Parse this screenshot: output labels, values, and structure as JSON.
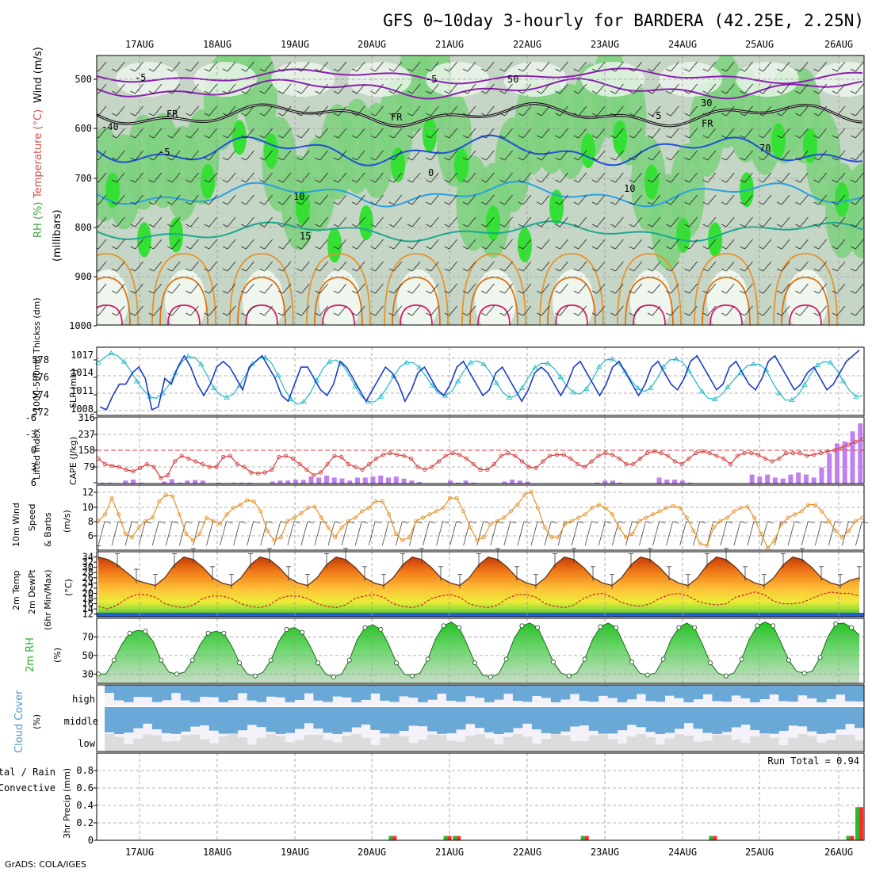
{
  "title": "GFS 0~10day 3-hourly for BARDERA (42.25E, 2.25N)",
  "credit": "GrADS: COLA/IGES",
  "days": [
    "17AUG",
    "18AUG",
    "19AUG",
    "20AUG",
    "21AUG",
    "22AUG",
    "23AUG",
    "24AUG",
    "25AUG",
    "26AUG"
  ],
  "colors": {
    "humid_light": "#eef6ee",
    "humid_mid": "#c6d6c6",
    "humid_green": "#7ed27e",
    "humid_bright": "#35e035",
    "thickness": "#22b8c8",
    "slp": "#1a3cc8",
    "lifted": "#d83a3a",
    "cape": "#c080f0",
    "wind10": "#e8922a",
    "temp_fill": "#f07a18",
    "dewpt": "#cc2222",
    "rh": "#2ab02a",
    "cloud": "#6aa8d8",
    "rain": "#ff2a2a",
    "precip_total": "#2ab82a"
  },
  "panels": {
    "upper": {
      "y_label_1": "RH (%)",
      "y_label_2": "Temperature (°C)",
      "y_label_3": "Wind (m/s)",
      "y_label_units": "(millibars)",
      "levels": [
        "500",
        "600",
        "700",
        "800",
        "900",
        "1000"
      ],
      "contour_labels": [
        "-5",
        "-5",
        "FR",
        "FR",
        "FR",
        "-5",
        "-5",
        "10",
        "10",
        "15",
        "-40",
        "50",
        "30",
        "70",
        "0"
      ]
    },
    "thickness_slp": {
      "left_label": "1000-500mb Thickss (dm)",
      "right_label": "SLP (mb)",
      "thickness_ticks": [
        "578",
        "576",
        "574",
        "572"
      ],
      "slp_ticks": [
        "1017",
        "1014",
        "1011",
        "1008"
      ]
    },
    "lifted_cape": {
      "left_label": "Lifted Index",
      "right_label": "CAPE (J/kg)",
      "li_ticks": [
        "-6",
        "-3",
        "0",
        "3",
        "6"
      ],
      "cape_ticks": [
        "316",
        "237",
        "158",
        "79"
      ]
    },
    "wind10m": {
      "label_1": "10m Wind",
      "label_2": "Speed",
      "label_3": "& Barbs",
      "unit": "(m/s)",
      "ticks": [
        "12",
        "10",
        "8",
        "6"
      ]
    },
    "temp2m": {
      "label_1": "2m Temp",
      "label_2": "2m DewPt",
      "label_3": "(6hr Min/Max)",
      "unit": "(°C)",
      "ticks": [
        "34",
        "32",
        "30",
        "28",
        "26",
        "24",
        "22",
        "20",
        "18",
        "16",
        "14",
        "12"
      ]
    },
    "rh2m": {
      "label": "2m RH",
      "unit": "(%)",
      "ticks": [
        "70",
        "50",
        "30"
      ]
    },
    "cloud": {
      "label": "Cloud Cover",
      "unit": "(%)",
      "layers": [
        "high",
        "middle",
        "low"
      ]
    },
    "precip": {
      "label_1": "Total / Rain",
      "label_2": "Convective",
      "axis": "3hr Precip (mm)",
      "ticks": [
        "0.8",
        "0.6",
        "0.4",
        "0.2",
        "0"
      ],
      "run_total": "Run Total = 0.94"
    }
  },
  "chart_data": [
    {
      "type": "line",
      "name": "1000-500mb Thickness",
      "ylim": [
        571,
        579
      ],
      "x": "3-hourly steps 16AUG 12Z to 26AUG 12Z",
      "values": [
        577.2,
        577.8,
        578.3,
        578.0,
        577.3,
        576.3,
        575.0,
        574.0,
        573.2,
        573.0,
        573.6,
        574.6,
        576.0,
        577.3,
        577.9,
        577.8,
        577.0,
        575.6,
        574.2,
        573.4,
        573.1,
        573.5,
        574.5,
        575.8,
        577.0,
        577.7,
        577.8,
        577.1,
        575.7,
        574.1,
        572.9,
        572.3,
        572.6,
        573.6,
        575.1,
        576.5,
        577.3,
        577.5,
        577.0,
        575.8,
        574.4,
        573.2,
        572.6,
        572.6,
        573.2,
        574.3,
        575.6,
        576.7,
        577.2,
        577.2,
        576.6,
        575.6,
        574.5,
        573.6,
        573.3,
        573.8,
        575.0,
        576.3,
        577.2,
        577.4,
        577.0,
        576.1,
        574.8,
        573.7,
        573.1,
        573.3,
        574.2,
        575.5,
        576.6,
        577.1,
        577.1,
        576.5,
        575.5,
        574.4,
        573.7,
        573.5,
        574.1,
        575.3,
        576.7,
        577.5,
        577.6,
        577.1,
        576.2,
        575.1,
        574.2,
        573.8,
        574.2,
        575.3,
        576.7,
        577.5,
        577.6,
        577.2,
        576.2,
        575.0,
        573.8,
        573.0,
        572.9,
        573.4,
        574.3,
        575.2,
        576.0,
        576.8,
        577.0,
        577.0,
        576.3,
        574.9,
        573.6,
        572.8,
        572.8,
        573.4,
        574.6,
        575.9,
        576.9,
        577.3,
        577.2,
        576.3,
        575.0,
        573.9,
        573.2,
        573.3
      ]
    },
    {
      "type": "line",
      "name": "SLP",
      "ylim": [
        1006.5,
        1018.5
      ],
      "values": [
        1008,
        1007.5,
        1010,
        1012,
        1012,
        1014,
        1015,
        1013,
        1007.5,
        1008,
        1013,
        1012,
        1015,
        1017,
        1015,
        1012,
        1010,
        1012,
        1015,
        1016,
        1015,
        1013,
        1011,
        1015,
        1016,
        1017,
        1015,
        1013,
        1010,
        1009,
        1012,
        1015,
        1015,
        1013,
        1011,
        1010,
        1012,
        1016,
        1015,
        1013,
        1011,
        1009,
        1011,
        1013,
        1015,
        1014,
        1012,
        1009,
        1011,
        1014,
        1015,
        1013,
        1011,
        1010,
        1012,
        1015,
        1016,
        1014,
        1012,
        1010,
        1011,
        1014,
        1015,
        1013,
        1011,
        1009,
        1011,
        1014,
        1015,
        1014,
        1012,
        1010,
        1012,
        1015,
        1016,
        1014,
        1012,
        1010,
        1012,
        1015,
        1016,
        1014,
        1012,
        1010,
        1012,
        1015,
        1016,
        1014,
        1012,
        1011,
        1013,
        1016,
        1017,
        1015,
        1013,
        1011,
        1012,
        1015,
        1016,
        1014,
        1012,
        1011,
        1013,
        1016,
        1017,
        1015,
        1013,
        1011,
        1012,
        1014,
        1015,
        1013,
        1011,
        1012,
        1014,
        1016,
        1017,
        1018
      ]
    },
    {
      "type": "line",
      "name": "Lifted Index",
      "ylim": [
        6,
        -6
      ],
      "values": [
        1.5,
        2.5,
        2.8,
        3.0,
        3.5,
        3.8,
        3.2,
        2.5,
        3.0,
        5.0,
        4.5,
        2.0,
        1.0,
        1.5,
        2.0,
        2.5,
        3.0,
        3.0,
        1.2,
        1.0,
        2.5,
        3.0,
        4.0,
        4.2,
        4.0,
        3.5,
        1.2,
        1.0,
        1.5,
        2.5,
        3.5,
        4.5,
        4.0,
        2.5,
        1.0,
        1.2,
        2.5,
        3.0,
        3.5,
        2.5,
        1.5,
        0.8,
        0.5,
        0.8,
        1.0,
        1.5,
        3.0,
        3.5,
        3.0,
        2.0,
        1.0,
        0.5,
        0.8,
        1.5,
        2.5,
        3.5,
        3.5,
        2.5,
        1.0,
        0.5,
        1.0,
        2.0,
        3.0,
        3.2,
        2.0,
        1.0,
        0.8,
        0.8,
        1.5,
        2.5,
        3.0,
        2.0,
        1.0,
        0.5,
        0.8,
        1.5,
        2.5,
        2.5,
        1.5,
        0.5,
        0.2,
        0.5,
        1.0,
        2.0,
        2.5,
        1.5,
        0.5,
        0.2,
        0.5,
        1.0,
        1.5,
        2.5,
        1.0,
        0.5,
        0.5,
        0.8,
        1.5,
        2.0,
        1.5,
        0.5,
        0.5,
        0.5,
        1.0,
        0.8,
        0.5,
        0.2,
        0.0,
        -0.5,
        -1.0,
        -1.5,
        -2.0
      ]
    },
    {
      "type": "bar",
      "name": "CAPE",
      "ylim": [
        0,
        316
      ],
      "values": [
        5,
        5,
        3,
        15,
        20,
        5,
        0,
        0,
        10,
        22,
        5,
        15,
        18,
        15,
        0,
        5,
        3,
        5,
        5,
        5,
        0,
        0,
        10,
        15,
        15,
        20,
        18,
        35,
        30,
        40,
        30,
        25,
        15,
        30,
        30,
        35,
        40,
        30,
        35,
        25,
        15,
        8,
        0,
        0,
        0,
        15,
        5,
        15,
        5,
        0,
        0,
        0,
        10,
        20,
        15,
        10,
        0,
        0,
        0,
        0,
        0,
        0,
        0,
        0,
        5,
        15,
        15,
        5,
        0,
        0,
        0,
        0,
        30,
        20,
        20,
        15,
        5,
        0,
        0,
        0,
        0,
        0,
        0,
        0,
        45,
        35,
        45,
        30,
        25,
        45,
        55,
        45,
        30,
        80,
        150,
        200,
        210,
        260,
        300
      ]
    },
    {
      "type": "line",
      "name": "10m Wind Speed",
      "ylim": [
        3.5,
        13.5
      ],
      "values": [
        8,
        9,
        11.5,
        9,
        6,
        5.5,
        7,
        8,
        8.5,
        11,
        12,
        11.8,
        9,
        6,
        5,
        6,
        8.5,
        8,
        7.5,
        9,
        10,
        10.5,
        11.2,
        11,
        9.5,
        6.5,
        5,
        5.5,
        8,
        8.5,
        9.2,
        10,
        10.2,
        8.5,
        7,
        5.5,
        7,
        8,
        8.5,
        9.5,
        10,
        11,
        11,
        9,
        6,
        5,
        5.5,
        8,
        8.5,
        9,
        9.5,
        10,
        11.5,
        11.5,
        9.5,
        7,
        5,
        5.5,
        7.5,
        8,
        8.5,
        9.5,
        10.5,
        12,
        12.5,
        10,
        7,
        5.5,
        5.5,
        7.5,
        8,
        8.5,
        9,
        10,
        10.5,
        10,
        9,
        7,
        5.5,
        6,
        8,
        8.5,
        9,
        9.5,
        10,
        10.3,
        10,
        8.5,
        6.5,
        4.5,
        4.2,
        7,
        8,
        8.5,
        9.5,
        10,
        10.2,
        8.5,
        6,
        3.8,
        5,
        7.5,
        8.5,
        9,
        9.5,
        10.5,
        10.5,
        9.5,
        8,
        6.5,
        5.5,
        6.5,
        8,
        8.5
      ]
    },
    {
      "type": "area",
      "name": "2m Temp",
      "ylim": [
        11,
        36
      ],
      "values": [
        34,
        33,
        31,
        28,
        25,
        24,
        23,
        26,
        31,
        34,
        33,
        30,
        26,
        24,
        23,
        26,
        31,
        34,
        33,
        30,
        26,
        24,
        23,
        26,
        31,
        34,
        33,
        30,
        26,
        24,
        23,
        26,
        31,
        34,
        33,
        30,
        26,
        24,
        23,
        26,
        31,
        34,
        33,
        30,
        26,
        24,
        23,
        26,
        31,
        34,
        33,
        30,
        26,
        24,
        23,
        26,
        31,
        34,
        33,
        30,
        26,
        24,
        23,
        26,
        31,
        34,
        33,
        30,
        26,
        24,
        23,
        26,
        31,
        34,
        33,
        30,
        26,
        24,
        23,
        25,
        26
      ]
    },
    {
      "type": "line",
      "name": "2m DewPt",
      "ylim": [
        11,
        36
      ],
      "values": [
        15,
        14,
        15.5,
        18,
        19.5,
        19.5,
        18.5,
        16,
        15,
        14.5,
        15.5,
        18,
        19,
        19,
        18,
        16,
        15,
        14.5,
        15.5,
        18,
        19,
        19,
        18,
        16,
        15,
        14.5,
        15.5,
        18,
        19,
        19.5,
        18.5,
        16,
        15,
        14.5,
        15.5,
        18,
        19,
        19.5,
        18.5,
        16,
        15,
        14.5,
        15.5,
        18,
        19.5,
        19.5,
        18.5,
        16,
        15,
        14.5,
        15.5,
        18,
        19.5,
        20,
        18.5,
        16.5,
        15.5,
        15,
        16,
        18,
        19.5,
        20,
        19,
        17,
        16,
        15.5,
        16,
        18.5,
        19.5,
        20.5,
        19.5,
        17,
        16,
        16,
        16.5,
        18,
        19.5,
        20.5,
        20,
        20,
        19
      ]
    },
    {
      "type": "area",
      "name": "2m RH",
      "ylim": [
        20,
        90
      ],
      "values": [
        30,
        30,
        45,
        62,
        74,
        77,
        76,
        65,
        45,
        32,
        30,
        32,
        45,
        62,
        74,
        76,
        74,
        60,
        42,
        30,
        28,
        32,
        45,
        65,
        78,
        80,
        75,
        60,
        42,
        30,
        27,
        30,
        45,
        67,
        80,
        83,
        78,
        62,
        42,
        30,
        28,
        31,
        46,
        68,
        82,
        86,
        80,
        62,
        42,
        29,
        27,
        30,
        46,
        68,
        82,
        85,
        80,
        62,
        43,
        31,
        28,
        31,
        46,
        67,
        81,
        85,
        80,
        62,
        43,
        31,
        29,
        31,
        46,
        67,
        80,
        85,
        80,
        62,
        42,
        31,
        28,
        31,
        46,
        68,
        82,
        86,
        82,
        64,
        45,
        33,
        31,
        33,
        48,
        70,
        84,
        85,
        80,
        72
      ]
    },
    {
      "type": "bar",
      "name": "3hr Precip (mm)",
      "ylim": [
        0,
        1.0
      ],
      "series": [
        {
          "name": "Total",
          "values": [
            0,
            0,
            0,
            0,
            0,
            0,
            0,
            0,
            0,
            0,
            0,
            0,
            0,
            0,
            0,
            0,
            0,
            0,
            0,
            0,
            0,
            0,
            0,
            0,
            0,
            0,
            0,
            0,
            0,
            0,
            0,
            0,
            0.05,
            0,
            0,
            0,
            0,
            0,
            0.05,
            0.05,
            0,
            0,
            0,
            0,
            0,
            0,
            0,
            0,
            0,
            0,
            0,
            0,
            0,
            0.05,
            0,
            0,
            0,
            0,
            0,
            0,
            0,
            0,
            0,
            0,
            0,
            0,
            0,
            0.05,
            0,
            0,
            0,
            0,
            0,
            0,
            0,
            0,
            0,
            0,
            0,
            0,
            0,
            0,
            0.05,
            0.38
          ]
        },
        {
          "name": "Rain",
          "values": [
            0,
            0,
            0,
            0,
            0,
            0,
            0,
            0,
            0,
            0,
            0,
            0,
            0,
            0,
            0,
            0,
            0,
            0,
            0,
            0,
            0,
            0,
            0,
            0,
            0,
            0,
            0,
            0,
            0,
            0,
            0,
            0,
            0.05,
            0,
            0,
            0,
            0,
            0,
            0.05,
            0.05,
            0,
            0,
            0,
            0,
            0,
            0,
            0,
            0,
            0,
            0,
            0,
            0,
            0,
            0.05,
            0,
            0,
            0,
            0,
            0,
            0,
            0,
            0,
            0,
            0,
            0,
            0,
            0,
            0.05,
            0,
            0,
            0,
            0,
            0,
            0,
            0,
            0,
            0,
            0,
            0,
            0,
            0,
            0,
            0.05,
            0.38
          ]
        }
      ]
    }
  ]
}
